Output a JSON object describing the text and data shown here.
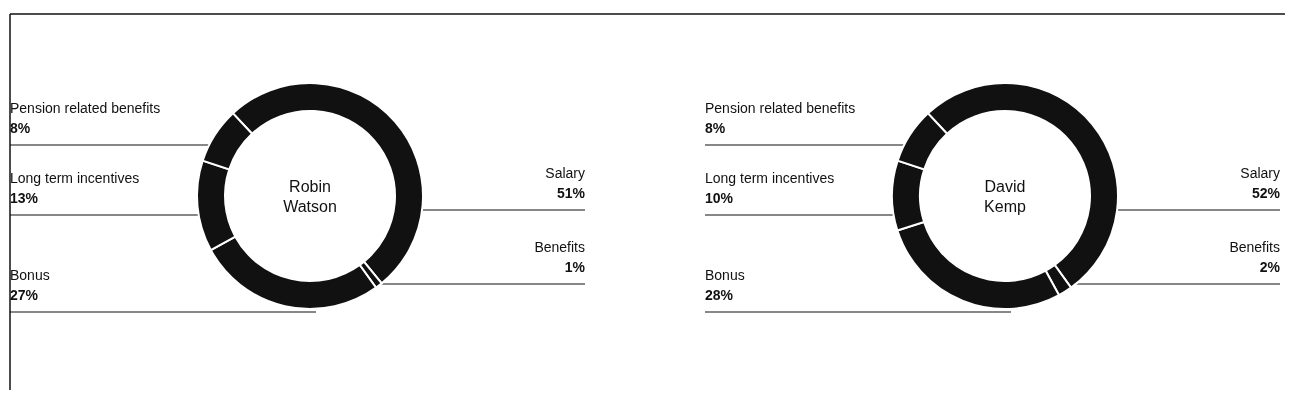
{
  "chart_data": [
    {
      "type": "donut",
      "title": "Robin Watson",
      "categories": [
        "Salary",
        "Benefits",
        "Bonus",
        "Long term incentives",
        "Pension related benefits"
      ],
      "values": [
        51,
        1,
        27,
        13,
        8
      ],
      "value_labels": [
        "51%",
        "1%",
        "27%",
        "13%",
        "8%"
      ],
      "colors": [
        "#111111",
        "#111111",
        "#111111",
        "#111111",
        "#111111"
      ]
    },
    {
      "type": "donut",
      "title": "David Kemp",
      "categories": [
        "Salary",
        "Benefits",
        "Bonus",
        "Long term incentives",
        "Pension related benefits"
      ],
      "values": [
        52,
        2,
        28,
        10,
        8
      ],
      "value_labels": [
        "52%",
        "2%",
        "28%",
        "10%",
        "8%"
      ],
      "colors": [
        "#111111",
        "#111111",
        "#111111",
        "#111111",
        "#111111"
      ]
    }
  ]
}
